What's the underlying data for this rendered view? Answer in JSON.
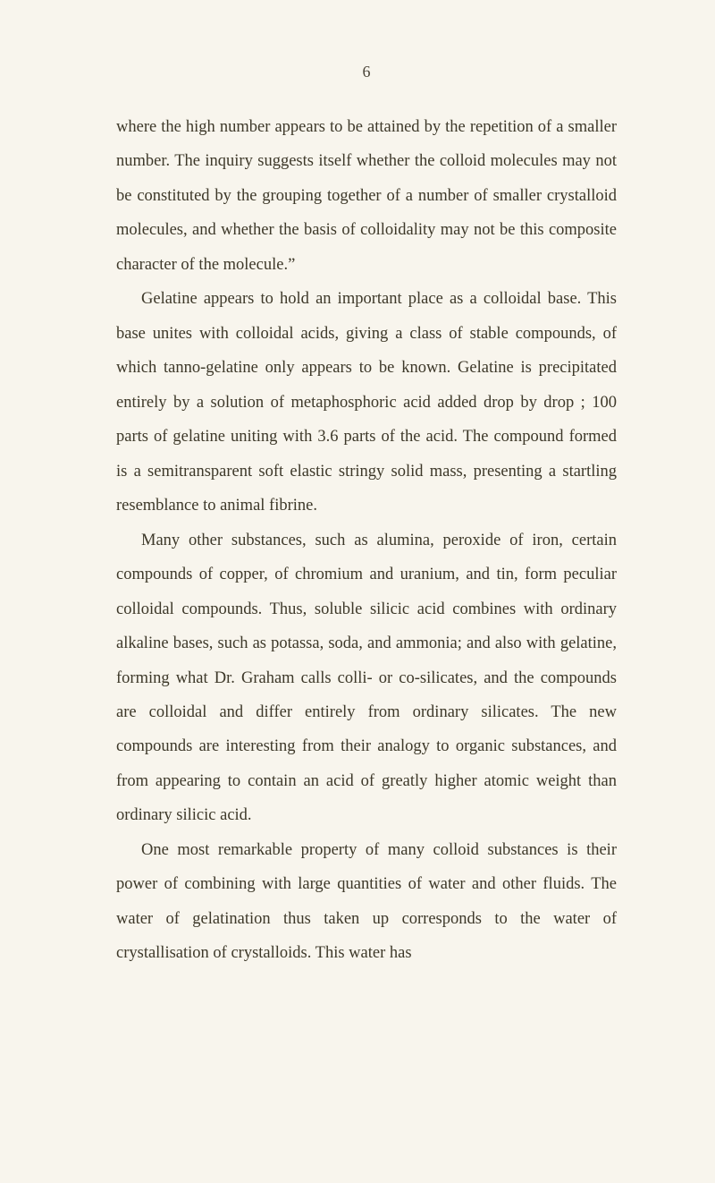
{
  "page_number": "6",
  "paragraphs": {
    "p1": "where the high number appears to be attained by the repetition of a smaller number. The inquiry suggests itself whether the colloid molecules may not be constituted by the grouping together of a number of smaller crystalloid molecules, and whether the basis of colloidality may not be this composite character of the molecule.”",
    "p2": "Gelatine appears to hold an important place as a colloidal base. This base unites with colloidal acids, giving a class of stable compounds, of which tanno-gelatine only appears to be known. Gelatine is precipitated entirely by a solution of metaphosphoric acid added drop by drop ; 100 parts of gelatine uniting with 3.6 parts of the acid. The compound formed is a semitransparent soft elastic stringy solid mass, presenting a startling resemblance to animal fibrine.",
    "p3": "Many other substances, such as alumina, peroxide of iron, certain compounds of copper, of chromium and uranium, and tin, form peculiar colloidal compounds. Thus, soluble silicic acid combines with ordinary alkaline bases, such as potassa, soda, and ammonia; and also with gelatine, forming what Dr. Graham calls colli- or co-silicates, and the compounds are colloidal and differ entirely from ordinary silicates. The new compounds are interesting from their analogy to organic substances, and from appearing to contain an acid of greatly higher atomic weight than ordinary silicic acid.",
    "p4": "One most remarkable property of many colloid substances is their power of combining with large quantities of water and other fluids. The water of gelatination thus taken up corresponds to the water of crystallisation of crystalloids. This water has"
  }
}
